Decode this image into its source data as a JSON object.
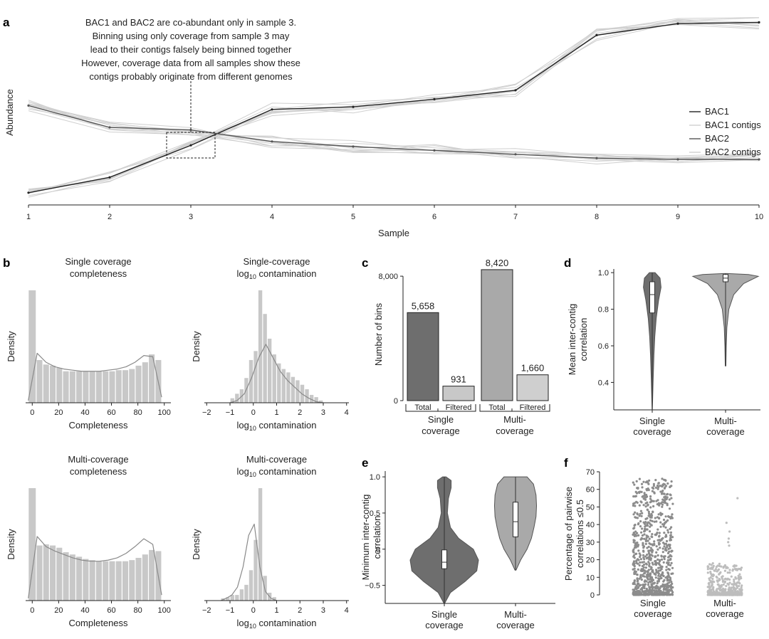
{
  "colors": {
    "dark": "#6e6e6e",
    "mid": "#a9a9a9",
    "light": "#c8c8c8",
    "faint": "#cfcfcf",
    "line": "#222222",
    "hist": "#c8c8c8",
    "histline": "#8a8a8a"
  },
  "chart_data": [
    {
      "panel": "a",
      "type": "line",
      "xlabel": "Sample",
      "ylabel": "Abundance",
      "x": [
        1,
        2,
        3,
        4,
        5,
        6,
        7,
        8,
        9,
        10
      ],
      "series": [
        {
          "name": "BAC1",
          "values": [
            0.04,
            0.16,
            0.41,
            0.69,
            0.71,
            0.77,
            0.84,
            1.27,
            1.36,
            1.37
          ]
        },
        {
          "name": "BAC2",
          "values": [
            0.72,
            0.55,
            0.53,
            0.44,
            0.4,
            0.37,
            0.34,
            0.31,
            0.3,
            0.3
          ]
        }
      ],
      "legend": [
        "BAC1",
        "BAC1 contigs",
        "BAC2",
        "BAC2 contigs"
      ],
      "legend_position": "right",
      "annotation": [
        "BAC1 and BAC2 are co-abundant only in sample 3.",
        "Binning using only coverage from sample 3 may",
        "lead to their contigs falsely being binned together",
        "However, coverage data from all samples show these",
        "contigs probably originate from different genomes"
      ]
    },
    {
      "panel": "b1",
      "type": "histogram",
      "title": [
        "Single coverage",
        "completeness"
      ],
      "xlabel": "Completeness",
      "ylabel": "Density",
      "xticks": [
        0,
        20,
        40,
        60,
        80,
        100
      ],
      "xlim": [
        -5,
        105
      ],
      "bins": [
        -3,
        3,
        8,
        13,
        18,
        23,
        28,
        33,
        38,
        43,
        48,
        53,
        58,
        63,
        68,
        73,
        78,
        83,
        88,
        93,
        98
      ],
      "values": [
        1.0,
        0.38,
        0.34,
        0.33,
        0.31,
        0.28,
        0.28,
        0.28,
        0.28,
        0.28,
        0.28,
        0.28,
        0.28,
        0.29,
        0.29,
        0.3,
        0.33,
        0.36,
        0.43,
        0.38
      ],
      "kde": [
        0.02,
        0.44,
        0.36,
        0.32,
        0.3,
        0.29,
        0.28,
        0.28,
        0.28,
        0.29,
        0.3,
        0.32,
        0.36,
        0.42,
        0.41,
        0.05
      ],
      "ymax": 1.0
    },
    {
      "panel": "b2",
      "type": "histogram",
      "title": [
        "Single-coverage",
        "log10 contamination"
      ],
      "xlabel": "log10 contamination",
      "ylabel": "Density",
      "xticks": [
        -2,
        -1,
        0,
        1,
        2,
        3,
        4
      ],
      "xlim": [
        -2.1,
        4.1
      ],
      "bins": [
        -1.0,
        -0.8,
        -0.6,
        -0.4,
        -0.2,
        0.0,
        0.2,
        0.4,
        0.6,
        0.8,
        1.0,
        1.2,
        1.4,
        1.6,
        1.8,
        2.0,
        2.2,
        2.4,
        2.6,
        2.8,
        3.0
      ],
      "values": [
        0.04,
        0.08,
        0.12,
        0.22,
        0.38,
        0.46,
        1.0,
        0.79,
        0.57,
        0.43,
        0.35,
        0.3,
        0.27,
        0.23,
        0.2,
        0.16,
        0.12,
        0.07,
        0.05,
        0.02
      ],
      "kde": [
        0.0,
        0.02,
        0.08,
        0.22,
        0.4,
        0.52,
        0.4,
        0.28,
        0.2,
        0.14,
        0.08,
        0.04,
        0.01,
        0.0
      ],
      "ymax": 1.0
    },
    {
      "panel": "b3",
      "type": "histogram",
      "title": [
        "Multi-coverage",
        "completeness"
      ],
      "xlabel": "Completeness",
      "ylabel": "Density",
      "xticks": [
        0,
        20,
        40,
        60,
        80,
        100
      ],
      "xlim": [
        -5,
        105
      ],
      "bins": [
        -3,
        3,
        8,
        13,
        18,
        23,
        28,
        33,
        38,
        43,
        48,
        53,
        58,
        63,
        68,
        73,
        78,
        83,
        88,
        93,
        98
      ],
      "values": [
        1.0,
        0.49,
        0.5,
        0.49,
        0.47,
        0.43,
        0.41,
        0.39,
        0.37,
        0.36,
        0.35,
        0.35,
        0.35,
        0.35,
        0.35,
        0.36,
        0.38,
        0.41,
        0.45,
        0.44
      ],
      "kde": [
        0.02,
        0.57,
        0.48,
        0.44,
        0.41,
        0.38,
        0.36,
        0.35,
        0.35,
        0.36,
        0.38,
        0.42,
        0.48,
        0.55,
        0.5,
        0.05
      ],
      "ymax": 1.0
    },
    {
      "panel": "b4",
      "type": "histogram",
      "title": [
        "Multi-coverage",
        "log10 contamination"
      ],
      "xlabel": "log10 contamination",
      "ylabel": "Density",
      "xticks": [
        -2,
        -1,
        0,
        1,
        2,
        3,
        4
      ],
      "xlim": [
        -2.1,
        4.1
      ],
      "bins": [
        -1.4,
        -1.2,
        -1.0,
        -0.8,
        -0.6,
        -0.4,
        -0.2,
        0.0,
        0.2,
        0.4,
        0.6,
        0.8,
        1.0
      ],
      "values": [
        0.02,
        0.03,
        0.05,
        0.05,
        0.1,
        0.14,
        0.27,
        0.54,
        1.0,
        0.22,
        0.07,
        0.03
      ],
      "kde": [
        0.0,
        0.02,
        0.05,
        0.12,
        0.3,
        0.58,
        0.68,
        0.3,
        0.08,
        0.02,
        0.0
      ],
      "ymax": 1.0
    },
    {
      "panel": "c",
      "type": "bar",
      "ylabel": "Number of bins",
      "ylim": [
        0,
        8600
      ],
      "yticks": [
        0,
        8000
      ],
      "groups": [
        {
          "name": [
            "Single",
            "coverage"
          ],
          "bars": [
            {
              "label": "Total",
              "value": 5658,
              "text": "5,658"
            },
            {
              "label": "Filtered",
              "value": 931,
              "text": "931"
            }
          ]
        },
        {
          "name": [
            "Multi-",
            "coverage"
          ],
          "bars": [
            {
              "label": "Total",
              "value": 8420,
              "text": "8,420"
            },
            {
              "label": "Filtered",
              "value": 1660,
              "text": "1,660"
            }
          ]
        }
      ]
    },
    {
      "panel": "d",
      "type": "violin",
      "ylabel": [
        "Mean inter-contig",
        "correlation"
      ],
      "ylim": [
        0.25,
        1.02
      ],
      "yticks": [
        0.4,
        0.6,
        0.8,
        1.0
      ],
      "categories": [
        [
          "Single",
          "coverage"
        ],
        [
          "Multi-",
          "coverage"
        ]
      ],
      "violins": [
        {
          "min": 0.25,
          "max": 1.0,
          "q1": 0.78,
          "median": 0.88,
          "q3": 0.95,
          "profile": [
            [
              0.25,
              0.01
            ],
            [
              0.4,
              0.06
            ],
            [
              0.55,
              0.12
            ],
            [
              0.65,
              0.18
            ],
            [
              0.75,
              0.28
            ],
            [
              0.85,
              0.45
            ],
            [
              0.92,
              0.62
            ],
            [
              0.97,
              0.55
            ],
            [
              1.0,
              0.2
            ]
          ]
        },
        {
          "min": 0.49,
          "max": 0.995,
          "q1": 0.95,
          "median": 0.97,
          "q3": 0.99,
          "profile": [
            [
              0.49,
              0.01
            ],
            [
              0.6,
              0.02
            ],
            [
              0.7,
              0.04
            ],
            [
              0.8,
              0.1
            ],
            [
              0.88,
              0.25
            ],
            [
              0.94,
              0.55
            ],
            [
              0.98,
              1.0
            ],
            [
              0.99,
              0.7
            ],
            [
              0.995,
              0.05
            ]
          ]
        }
      ]
    },
    {
      "panel": "e",
      "type": "violin",
      "ylabel": [
        "Minimum inter-contig",
        "correlation"
      ],
      "ylim": [
        -0.75,
        1.08
      ],
      "yticks": [
        -0.5,
        0,
        0.5,
        1.0
      ],
      "categories": [
        [
          "Single",
          "coverage"
        ],
        [
          "Multi-",
          "coverage"
        ]
      ],
      "violins": [
        {
          "min": -0.74,
          "max": 1.0,
          "q1": -0.27,
          "median": -0.18,
          "q3": -0.01,
          "profile": [
            [
              -0.74,
              0.02
            ],
            [
              -0.6,
              0.18
            ],
            [
              -0.45,
              0.6
            ],
            [
              -0.3,
              0.95
            ],
            [
              -0.15,
              1.0
            ],
            [
              0.0,
              0.85
            ],
            [
              0.15,
              0.42
            ],
            [
              0.3,
              0.18
            ],
            [
              0.5,
              0.09
            ],
            [
              0.7,
              0.12
            ],
            [
              0.85,
              0.2
            ],
            [
              0.95,
              0.2
            ],
            [
              1.0,
              0.05
            ]
          ]
        },
        {
          "min": -0.29,
          "max": 1.0,
          "q1": 0.17,
          "median": 0.38,
          "q3": 0.65,
          "profile": [
            [
              -0.29,
              0.02
            ],
            [
              -0.15,
              0.2
            ],
            [
              0.0,
              0.45
            ],
            [
              0.15,
              0.62
            ],
            [
              0.3,
              0.72
            ],
            [
              0.45,
              0.8
            ],
            [
              0.6,
              0.82
            ],
            [
              0.75,
              0.8
            ],
            [
              0.9,
              0.7
            ],
            [
              1.0,
              0.45
            ]
          ]
        }
      ]
    },
    {
      "panel": "f",
      "type": "scatter",
      "ylabel": [
        "Percentage of pairwise",
        "correlations ≤0.5"
      ],
      "ylim": [
        0,
        70
      ],
      "yticks": [
        0,
        10,
        20,
        30,
        40,
        50,
        60,
        70
      ],
      "categories": [
        [
          "Single",
          "coverage"
        ],
        [
          "Multi-",
          "coverage"
        ]
      ],
      "point_counts": [
        900,
        500
      ],
      "max_values": [
        66,
        55
      ]
    }
  ]
}
